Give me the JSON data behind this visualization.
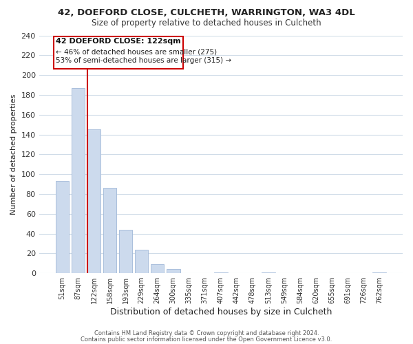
{
  "title": "42, DOEFORD CLOSE, CULCHETH, WARRINGTON, WA3 4DL",
  "subtitle": "Size of property relative to detached houses in Culcheth",
  "xlabel": "Distribution of detached houses by size in Culcheth",
  "ylabel": "Number of detached properties",
  "bin_labels": [
    "51sqm",
    "87sqm",
    "122sqm",
    "158sqm",
    "193sqm",
    "229sqm",
    "264sqm",
    "300sqm",
    "335sqm",
    "371sqm",
    "407sqm",
    "442sqm",
    "478sqm",
    "513sqm",
    "549sqm",
    "584sqm",
    "620sqm",
    "655sqm",
    "691sqm",
    "726sqm",
    "762sqm"
  ],
  "bar_values": [
    93,
    187,
    145,
    86,
    44,
    24,
    9,
    4,
    0,
    0,
    1,
    0,
    0,
    1,
    0,
    0,
    0,
    0,
    0,
    0,
    1
  ],
  "highlight_index": 2,
  "bar_color": "#ccdaed",
  "bar_edge_color": "#a0b8d8",
  "highlight_line_color": "#cc0000",
  "ylim": [
    0,
    240
  ],
  "yticks": [
    0,
    20,
    40,
    60,
    80,
    100,
    120,
    140,
    160,
    180,
    200,
    220,
    240
  ],
  "annotation_title": "42 DOEFORD CLOSE: 122sqm",
  "annotation_line1": "← 46% of detached houses are smaller (275)",
  "annotation_line2": "53% of semi-detached houses are larger (315) →",
  "footer1": "Contains HM Land Registry data © Crown copyright and database right 2024.",
  "footer2": "Contains public sector information licensed under the Open Government Licence v3.0.",
  "background_color": "#ffffff",
  "plot_bg_color": "#ffffff",
  "grid_color": "#d0dce8"
}
